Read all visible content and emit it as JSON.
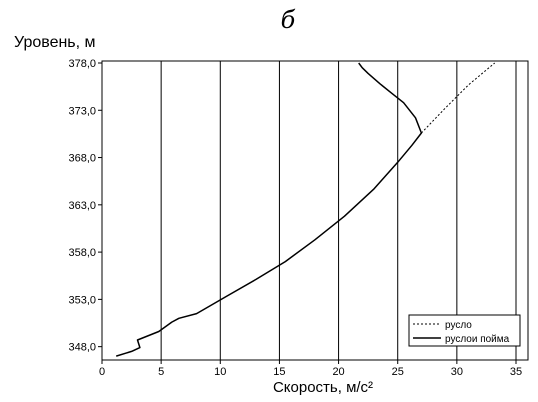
{
  "chart_data": {
    "type": "line",
    "title": "б",
    "xlabel": "Скорость, м/с²",
    "ylabel": "Уровень, м",
    "xlim": [
      0,
      35
    ],
    "ylim": [
      346.8,
      378.0
    ],
    "x_ticks": [
      0,
      5,
      10,
      15,
      20,
      25,
      30,
      35
    ],
    "y_ticks": [
      348.0,
      353.0,
      358.0,
      363.0,
      368.0,
      373.0,
      378.0
    ],
    "x_tick_labels": [
      "0",
      "5",
      "10",
      "15",
      "20",
      "25",
      "30",
      "35"
    ],
    "y_tick_labels": [
      "348,0",
      "353,0",
      "358,0",
      "363,0",
      "368,0",
      "373,0",
      "378,0"
    ],
    "grid": "vertical",
    "legend_position": "bottom-right",
    "series": [
      {
        "name": "русло",
        "style": "dashed",
        "color": "#000000",
        "x": [
          27.0,
          29.0,
          31.0,
          33.2
        ],
        "y": [
          370.6,
          373.2,
          375.7,
          378.0
        ]
      },
      {
        "name": "руслои пойма",
        "style": "solid",
        "color": "#000000",
        "x": [
          1.2,
          2.5,
          3.2,
          3.0,
          4.8,
          5.9,
          6.5,
          8.0,
          10.5,
          13.0,
          15.5,
          18.0,
          20.5,
          23.0,
          25.0,
          26.2,
          27.0,
          26.5,
          25.5,
          24.5,
          23.5,
          22.5,
          22.0,
          21.7
        ],
        "y": [
          347.0,
          347.5,
          347.9,
          348.7,
          349.6,
          350.6,
          351.0,
          351.5,
          353.3,
          355.1,
          357.0,
          359.3,
          361.8,
          364.7,
          367.5,
          369.3,
          370.6,
          372.2,
          373.8,
          374.8,
          375.8,
          376.9,
          377.5,
          378.0
        ]
      }
    ]
  }
}
